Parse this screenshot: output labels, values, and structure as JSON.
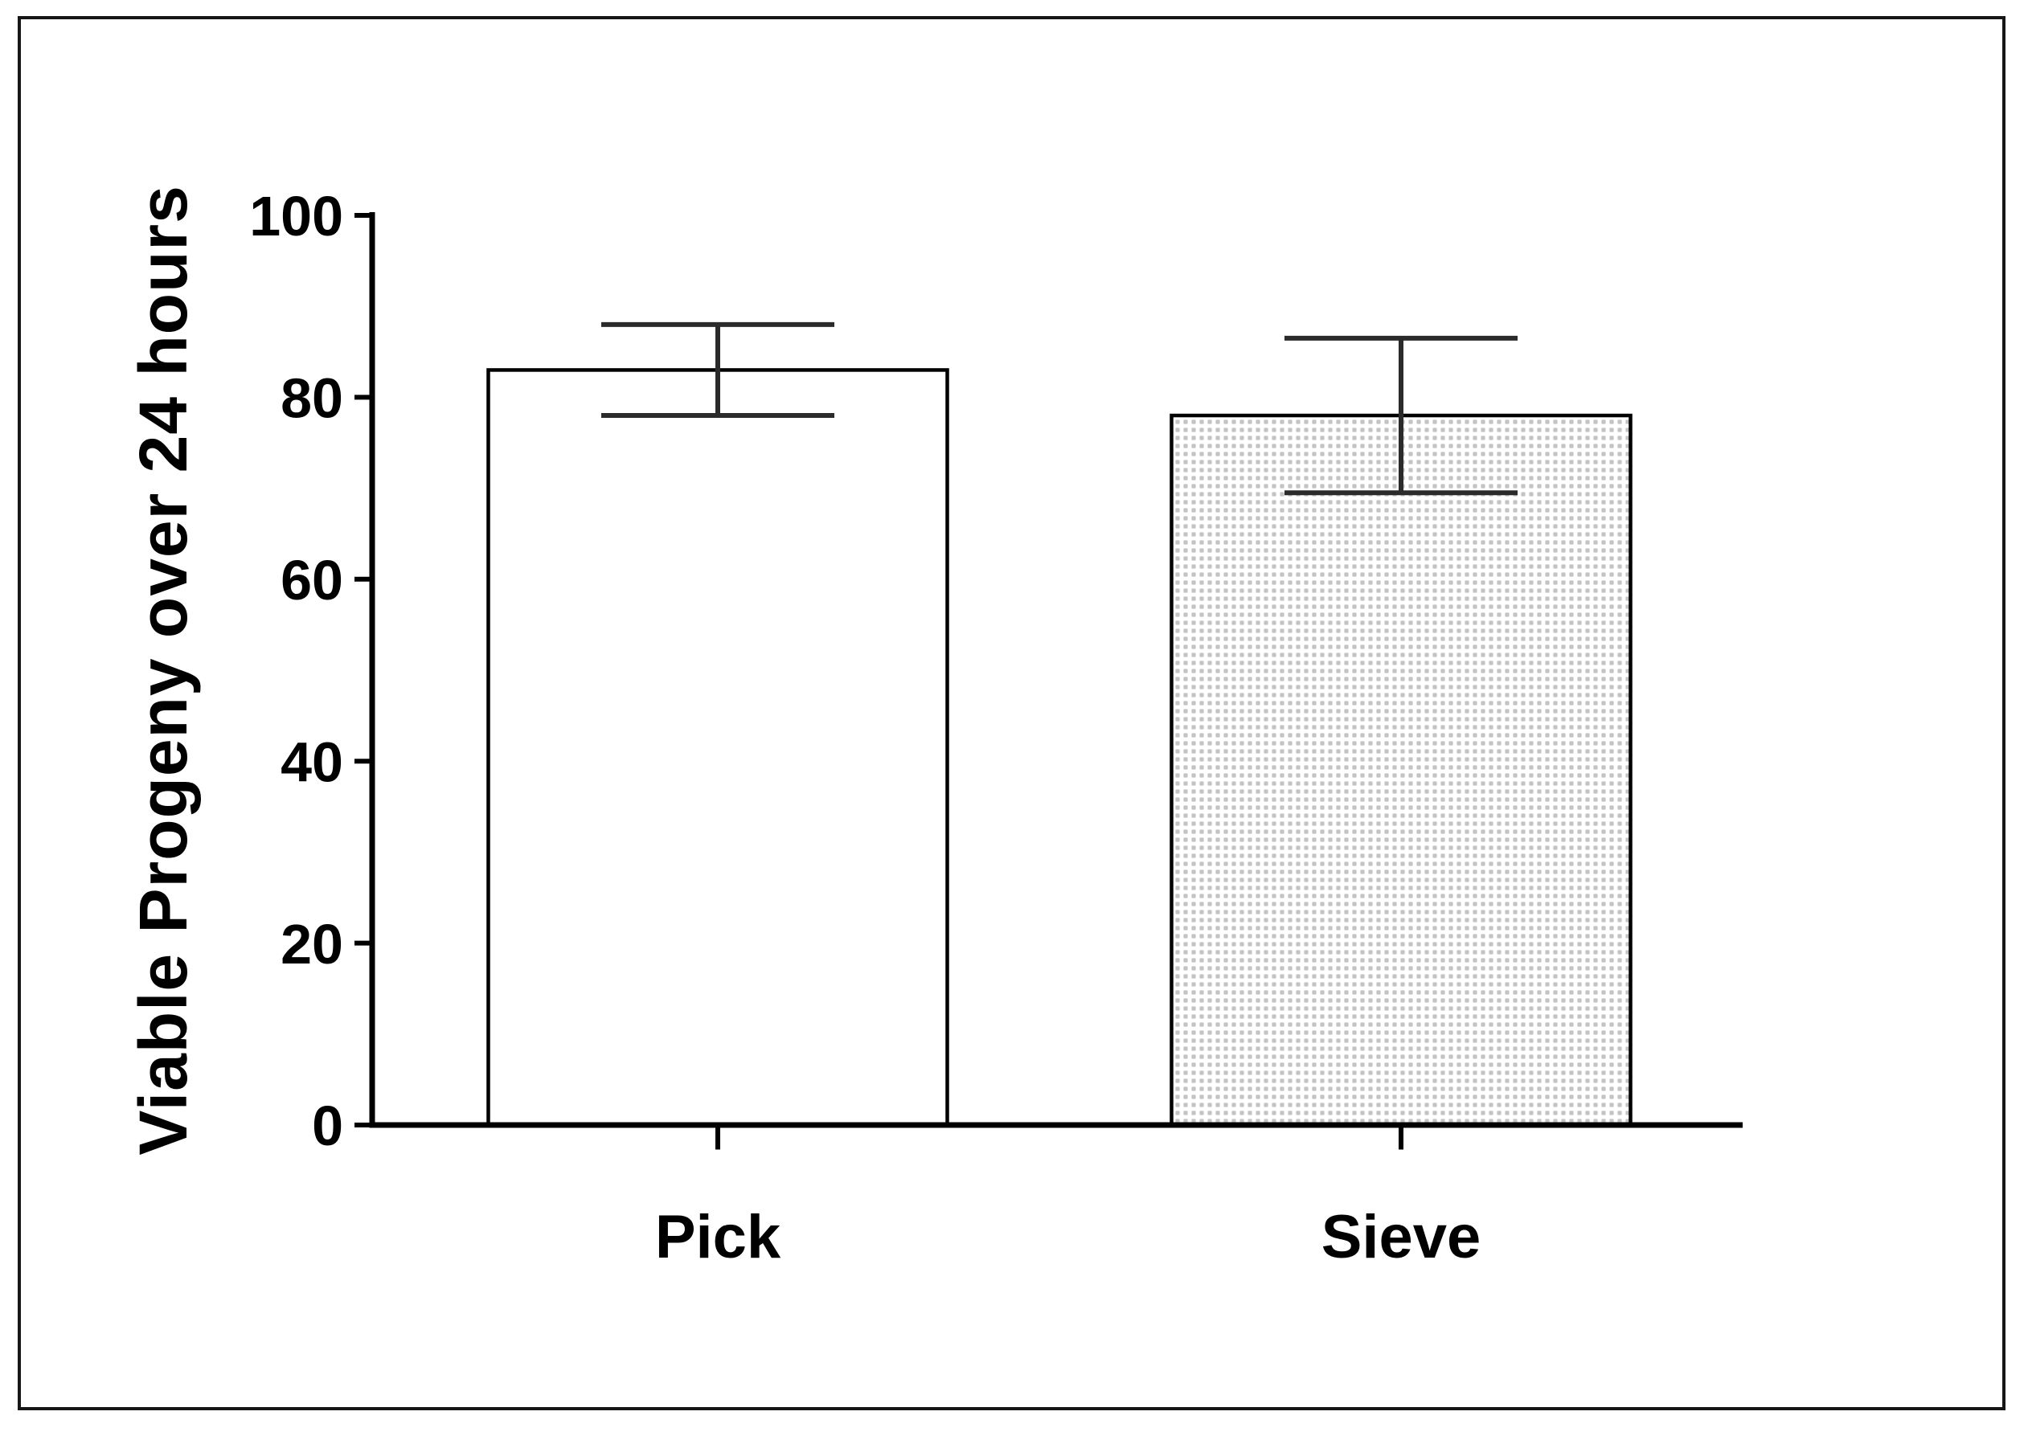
{
  "figure": {
    "background": "#ffffff",
    "frame_border_color": "#161616"
  },
  "chart_data": {
    "type": "bar",
    "title": "",
    "xlabel": "",
    "ylabel": "Viable Progeny over 24 hours",
    "categories": [
      "Pick",
      "Sieve"
    ],
    "values": [
      83,
      78
    ],
    "error_bars": {
      "style": "sd-caps",
      "upper": [
        88,
        86.5
      ],
      "lower": [
        78,
        69.5
      ]
    },
    "ylim": [
      0,
      100
    ],
    "yticks": [
      0,
      20,
      40,
      60,
      80,
      100
    ],
    "grid": false,
    "legend": "none",
    "bar_patterns": [
      "none",
      "dots"
    ],
    "colors": {
      "background": "#ffffff",
      "frame_border": "#161616",
      "axis": "#000000",
      "bar_outline": "#000000",
      "bar_fill": "#ffffff",
      "error_bar": "#2b2b2b",
      "pattern_dot": "#c4c4c4",
      "text": "#000000"
    }
  }
}
